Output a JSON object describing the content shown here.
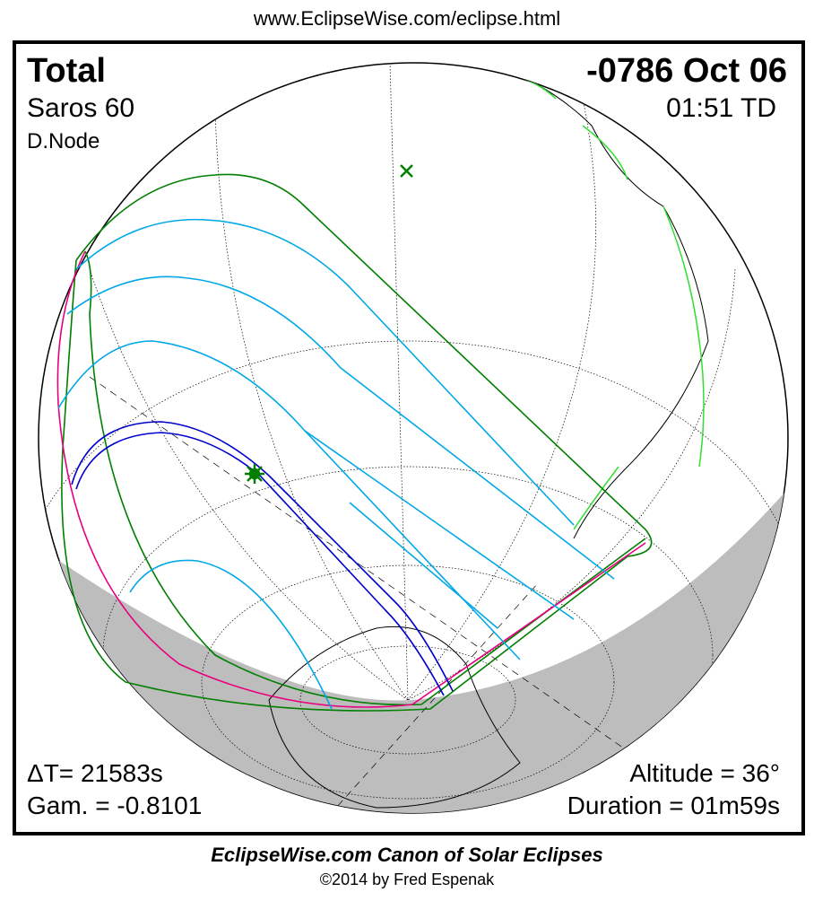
{
  "header": {
    "url": "www.EclipseWise.com/eclipse.html"
  },
  "eclipse": {
    "type": "Total",
    "saros": "Saros  60",
    "node": "D.Node",
    "date": "-0786 Oct 06",
    "time": "01:51 TD",
    "delta_t": "ΔT=  21583s",
    "gamma": "Gam. = -0.8101",
    "altitude": "Altitude = 36°",
    "duration": "Duration = 01m59s"
  },
  "footer": {
    "canon": "EclipseWise.com Canon of Solar Eclipses",
    "copyright": "©2014 by Fred Espenak"
  },
  "colors": {
    "penumbra_limit": "#007f00",
    "penumbral_isolines": "#00a8e8",
    "umbral_path": "#0000cc",
    "rise_set_curve": "#e8007f",
    "borders": "#33dd33",
    "night": "#bdbdbd"
  }
}
